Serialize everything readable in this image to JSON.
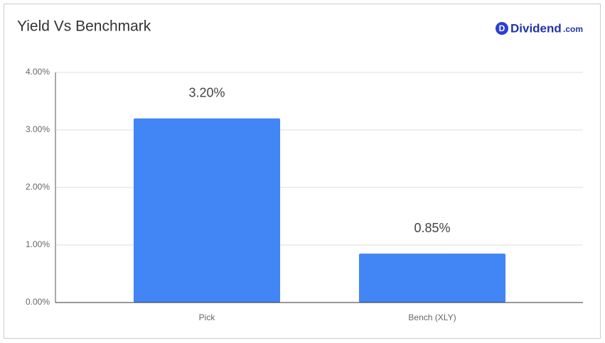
{
  "chart_data": {
    "type": "bar",
    "title": "Yield Vs Benchmark",
    "categories": [
      "Pick",
      "Bench (XLY)"
    ],
    "values": [
      3.2,
      0.85
    ],
    "value_labels": [
      "3.20%",
      "0.85%"
    ],
    "color": "#4285f4",
    "ylim": [
      0,
      4
    ],
    "yticks": [
      {
        "value": 0,
        "label": "0.00%"
      },
      {
        "value": 1,
        "label": "1.00%"
      },
      {
        "value": 2,
        "label": "2.00%"
      },
      {
        "value": 3,
        "label": "3.00%"
      },
      {
        "value": 4,
        "label": "4.00%"
      }
    ],
    "grid": true
  },
  "logo": {
    "icon": "D",
    "name": "Dividend",
    "suffix": ".com"
  }
}
